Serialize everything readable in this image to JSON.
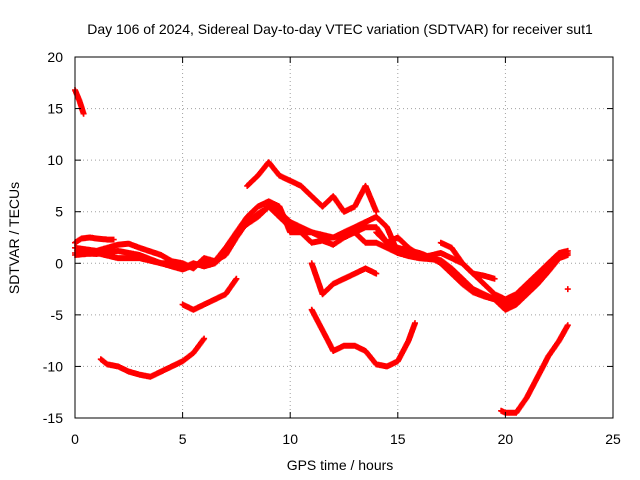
{
  "chart_data": {
    "type": "scatter",
    "title": "Day 106 of 2024, Sidereal Day-to-day VTEC variation (SDTVAR) for receiver sut1",
    "xlabel": "GPS time / hours",
    "ylabel": "SDTVAR / TECUs",
    "xlim": [
      0,
      25
    ],
    "ylim": [
      -15,
      20
    ],
    "xticks": [
      0,
      5,
      10,
      15,
      20,
      25
    ],
    "yticks": [
      -15,
      -10,
      -5,
      0,
      5,
      10,
      15,
      20
    ],
    "xtick_labels": [
      "0",
      "5",
      "10",
      "15",
      "20",
      "25"
    ],
    "ytick_labels": [
      "-15",
      "-10",
      "-5",
      "0",
      "5",
      "10",
      "15",
      "20"
    ],
    "grid": true,
    "marker": "+",
    "color": "#ff0000",
    "series": [
      {
        "name": "arc-1",
        "x": [
          0.0,
          0.2,
          0.4
        ],
        "y": [
          16.8,
          15.8,
          14.5
        ]
      },
      {
        "name": "arc-2",
        "x": [
          0.0,
          0.3,
          0.7,
          1.0,
          1.5,
          1.8
        ],
        "y": [
          2.0,
          2.4,
          2.5,
          2.4,
          2.3,
          2.3
        ]
      },
      {
        "name": "arc-3",
        "x": [
          0.0,
          1.0,
          2.0,
          3.0,
          4.0,
          4.5,
          5.0,
          5.5,
          6.0,
          6.5,
          7.0,
          7.5,
          8.0,
          8.5,
          9.0,
          9.5,
          10.0,
          10.5,
          11.0,
          11.5,
          12.0,
          12.5,
          13.0,
          13.5,
          14.0,
          14.5,
          15.0,
          15.5,
          16.0,
          16.5,
          17.0,
          17.5,
          18.0,
          18.5,
          19.0,
          19.5,
          20.0,
          20.5,
          21.0,
          21.5,
          22.0,
          22.5,
          22.9
        ],
        "y": [
          1.0,
          0.9,
          1.2,
          0.8,
          0.0,
          -0.3,
          -0.6,
          -0.2,
          0.0,
          0.2,
          0.8,
          2.5,
          4.0,
          4.8,
          5.5,
          5.0,
          4.0,
          3.5,
          3.0,
          2.5,
          2.5,
          3.0,
          3.5,
          4.0,
          4.5,
          3.5,
          1.0,
          0.7,
          0.5,
          0.4,
          0.3,
          -0.5,
          -1.5,
          -2.5,
          -3.0,
          -3.5,
          -4.0,
          -3.5,
          -2.5,
          -1.5,
          -0.5,
          0.5,
          1.0
        ]
      },
      {
        "name": "arc-4",
        "x": [
          0.0,
          1.0,
          2.0,
          2.5,
          3.0,
          4.0,
          4.5,
          5.0,
          5.5,
          6.0,
          6.5,
          7.0,
          7.5,
          8.0,
          8.5,
          9.0,
          9.5,
          10.0,
          11.0,
          12.0,
          13.0,
          13.5,
          14.0,
          14.5,
          15.0,
          15.5,
          16.0,
          17.0,
          17.5,
          18.0,
          18.5,
          19.0,
          19.5,
          20.0,
          20.5,
          21.0,
          21.5,
          22.0,
          22.5,
          22.9
        ],
        "y": [
          1.5,
          1.2,
          1.8,
          1.9,
          1.5,
          0.8,
          0.2,
          0.0,
          -0.5,
          0.5,
          0.2,
          1.5,
          3.0,
          4.5,
          5.5,
          6.0,
          5.5,
          3.0,
          3.0,
          2.5,
          3.0,
          2.0,
          2.0,
          1.5,
          1.0,
          1.0,
          0.5,
          1.0,
          0.5,
          0.0,
          -1.0,
          -2.0,
          -3.0,
          -3.5,
          -3.0,
          -2.0,
          -1.0,
          0.0,
          1.0,
          1.2
        ]
      },
      {
        "name": "arc-5",
        "x": [
          0.0,
          1.0,
          2.0,
          3.0,
          4.0,
          4.5,
          5.0,
          5.5,
          6.0,
          6.5,
          7.0,
          7.5,
          8.0,
          8.5,
          9.0,
          9.5,
          10.0,
          10.5,
          11.0,
          11.5,
          12.0,
          12.5,
          13.0,
          13.5,
          14.0,
          14.5,
          15.0,
          16.0,
          16.5,
          17.0,
          17.5,
          18.0,
          18.5,
          19.0,
          19.5,
          20.0,
          20.5,
          21.0,
          21.5,
          22.0,
          22.5,
          22.9
        ],
        "y": [
          0.8,
          1.0,
          0.5,
          0.5,
          0.0,
          0.0,
          -0.5,
          0.0,
          -0.3,
          0.0,
          1.0,
          3.0,
          3.8,
          4.5,
          5.5,
          4.5,
          3.5,
          3.0,
          2.0,
          2.2,
          1.8,
          2.5,
          3.0,
          3.5,
          3.5,
          2.0,
          1.5,
          1.0,
          0.6,
          0.0,
          -1.0,
          -2.0,
          -2.8,
          -3.2,
          -3.5,
          -4.5,
          -4.0,
          -3.0,
          -2.0,
          -0.8,
          0.5,
          0.8
        ]
      },
      {
        "name": "arc-6",
        "x": [
          8.0,
          8.5,
          9.0,
          9.5,
          10.0,
          10.5,
          11.0,
          11.5,
          12.0,
          12.5,
          13.0,
          13.5,
          14.0
        ],
        "y": [
          7.5,
          8.5,
          9.8,
          8.5,
          8.0,
          7.5,
          6.5,
          5.5,
          6.5,
          5.0,
          5.5,
          7.5,
          5.0
        ]
      },
      {
        "name": "arc-7",
        "x": [
          14.0,
          14.5,
          15.0,
          15.5,
          16.0
        ],
        "y": [
          3.0,
          2.0,
          2.5,
          1.5,
          0.8
        ]
      },
      {
        "name": "arc-8",
        "x": [
          17.0,
          17.5,
          18.0,
          18.5,
          19.0,
          19.5
        ],
        "y": [
          2.0,
          1.5,
          0.0,
          -1.0,
          -1.2,
          -1.5
        ]
      },
      {
        "name": "arc-9",
        "x": [
          11.0,
          11.5,
          12.0,
          12.5,
          13.0,
          13.5,
          14.0
        ],
        "y": [
          0.0,
          -3.0,
          -2.0,
          -1.5,
          -1.0,
          -0.5,
          -1.0
        ]
      },
      {
        "name": "arc-10",
        "x": [
          5.0,
          5.5,
          6.0,
          6.5,
          7.0,
          7.5
        ],
        "y": [
          -4.0,
          -4.5,
          -4.0,
          -3.5,
          -3.0,
          -1.5
        ]
      },
      {
        "name": "arc-11",
        "x": [
          1.2,
          1.5,
          2.0,
          2.5,
          3.0,
          3.5,
          4.0,
          4.5,
          5.0,
          5.5,
          6.0
        ],
        "y": [
          -9.3,
          -9.8,
          -10.0,
          -10.5,
          -10.8,
          -11.0,
          -10.5,
          -10.0,
          -9.5,
          -8.7,
          -7.3
        ]
      },
      {
        "name": "arc-12",
        "x": [
          11.0,
          11.5,
          12.0,
          12.5,
          13.0,
          13.5,
          14.0,
          14.5,
          15.0,
          15.5,
          15.8
        ],
        "y": [
          -4.5,
          -6.5,
          -8.5,
          -8.0,
          -8.0,
          -8.5,
          -9.8,
          -10.0,
          -9.5,
          -7.5,
          -5.8
        ]
      },
      {
        "name": "arc-13",
        "x": [
          19.8,
          20.0,
          20.5,
          21.0,
          21.5,
          22.0,
          22.5,
          22.9
        ],
        "y": [
          -14.3,
          -14.5,
          -14.5,
          -13.0,
          -11.0,
          -9.0,
          -7.5,
          -6.0
        ]
      },
      {
        "name": "point-1",
        "x": [
          22.9
        ],
        "y": [
          -2.5
        ]
      }
    ]
  }
}
